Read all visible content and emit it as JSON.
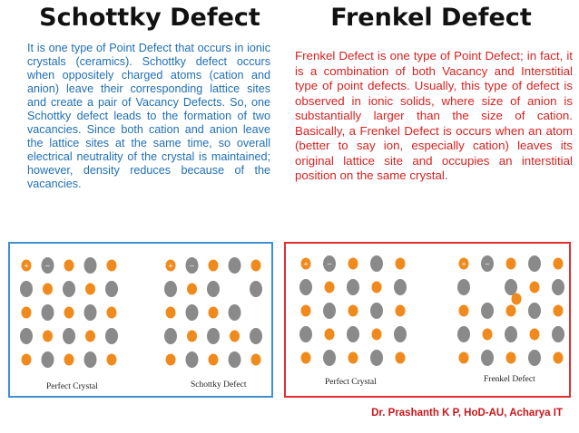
{
  "left": {
    "title": "Schottky Defect",
    "text": "It is one type of Point Defect that occurs in ionic crystals (ceramics). Schottky defect occurs when oppositely charged atoms (cation and anion) leave their corresponding lattice sites and create a pair of Vacancy Defects. So, one Schottky defect leads to the formation of two vacancies. Since both cation and anion leave the lattice sites at the same time, so overall electrical neutrality of the crystal is maintained; however, density reduces because of the vacancies.",
    "caption_perfect": "Perfect Crystal",
    "caption_defect": "Schottky Defect"
  },
  "right": {
    "title": "Frenkel Defect",
    "text": "Frenkel Defect is one type of Point Defect; in fact, it is a combination of both Vacancy and Interstitial type of point defects. Usually, this type of defect is observed in ionic solids, where size of anion is substantially larger than the size of cation. Basically, a Frenkel Defect is occurs when an atom (better to say ion, especially cation) leaves its original lattice site and occupies an interstitial position on the same crystal.",
    "caption_perfect": "Perfect Crystal",
    "caption_defect": "Frenkel Defect"
  },
  "credit": "Dr. Prashanth K P, HoD-AU, Acharya IT",
  "colors": {
    "cation": "#f08a1c",
    "anion": "#8a8a8a",
    "left_text": "#1f6fb5",
    "right_text": "#d91f1f",
    "left_border": "#3f8fd2",
    "right_border": "#e03030",
    "credit": "#c8171b"
  },
  "ion_labels": {
    "cation": "+",
    "anion": "−"
  }
}
